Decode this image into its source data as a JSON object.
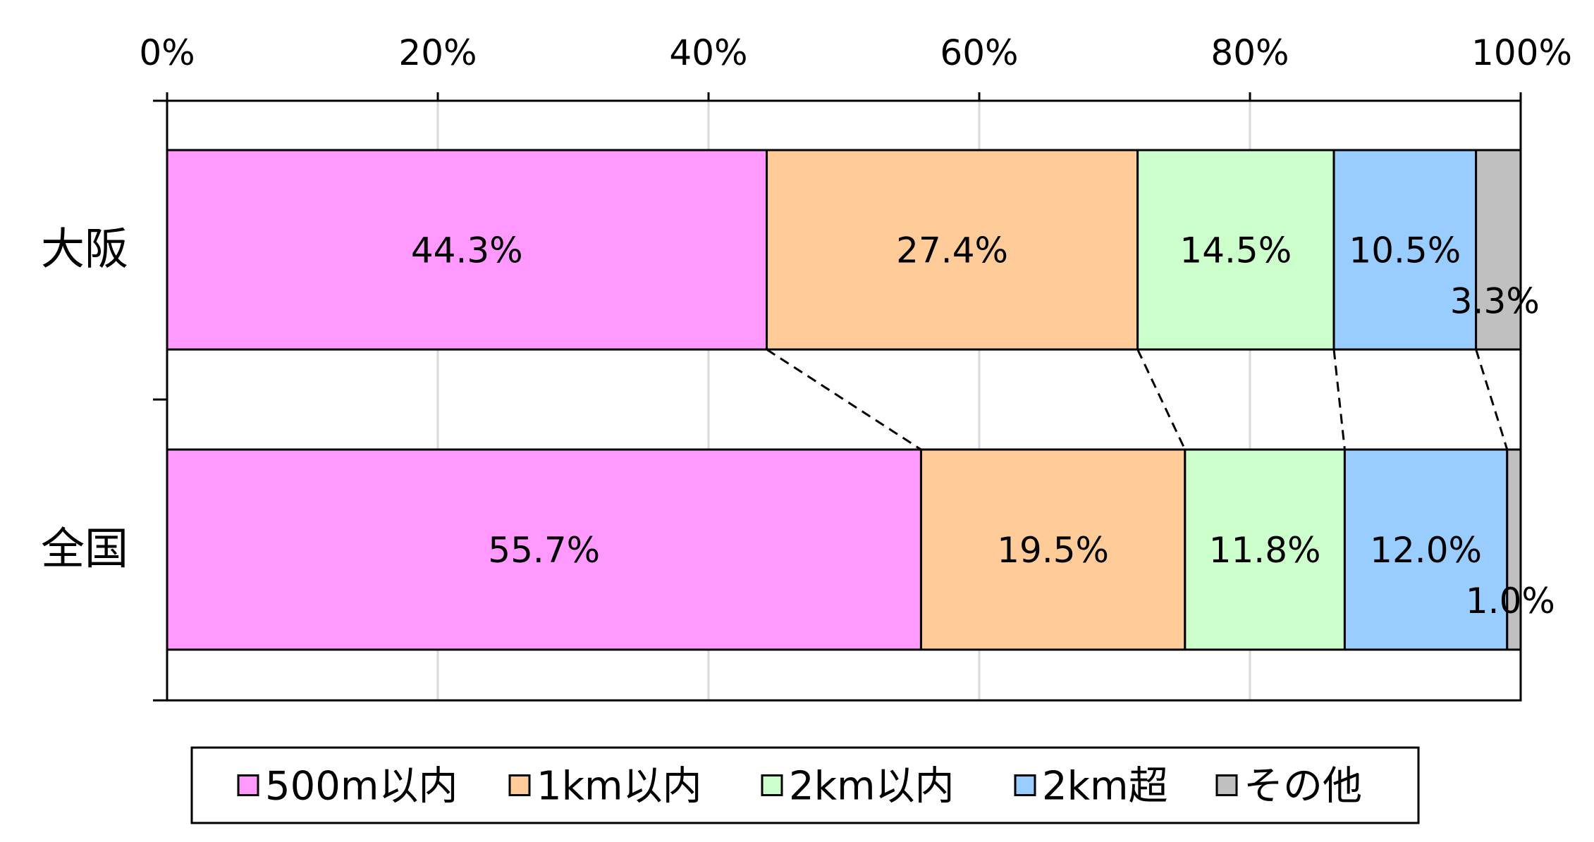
{
  "chart_data": {
    "type": "bar",
    "orientation": "horizontal",
    "stacked": "percent",
    "categories": [
      "大阪",
      "全国"
    ],
    "x_ticks": [
      "0%",
      "20%",
      "40%",
      "60%",
      "80%",
      "100%"
    ],
    "xlim": [
      0,
      100
    ],
    "grid": true,
    "connector_lines": "dashed",
    "legend_position": "bottom",
    "series": [
      {
        "name": "500m以内",
        "values": [
          44.3,
          55.7
        ],
        "labels": [
          "44.3%",
          "55.7%"
        ],
        "color": "#FF99FF"
      },
      {
        "name": "1km以内",
        "values": [
          27.4,
          19.5
        ],
        "labels": [
          "27.4%",
          "19.5%"
        ],
        "color": "#FFCC99"
      },
      {
        "name": "2km以内",
        "values": [
          14.5,
          11.8
        ],
        "labels": [
          "14.5%",
          "11.8%"
        ],
        "color": "#CCFFCC"
      },
      {
        "name": "2km超",
        "values": [
          10.5,
          12.0
        ],
        "labels": [
          "10.5%",
          "12.0%"
        ],
        "color": "#99CCFF"
      },
      {
        "name": "その他",
        "values": [
          3.3,
          1.0
        ],
        "labels": [
          "3.3%",
          "1.0%"
        ],
        "color": "#C0C0C0"
      }
    ]
  }
}
